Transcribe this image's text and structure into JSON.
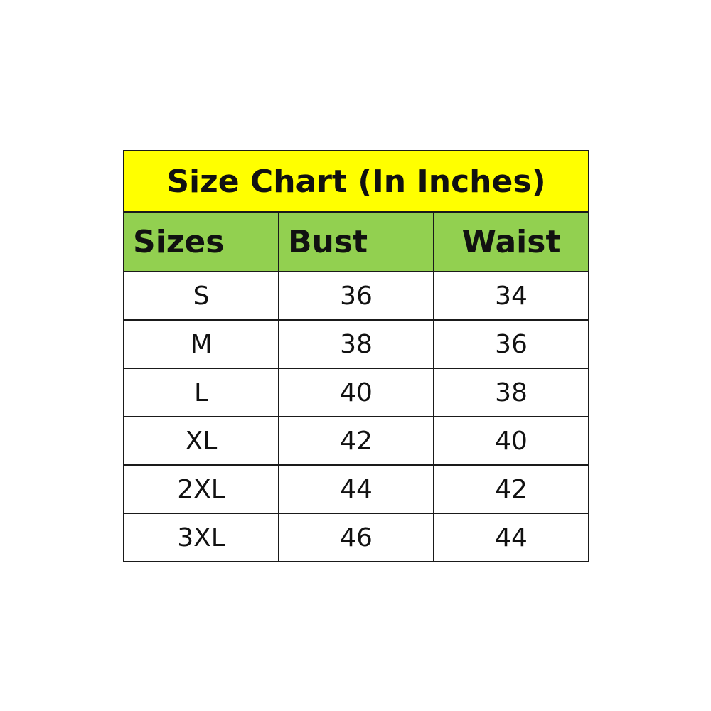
{
  "chart_data": {
    "type": "table",
    "title": "Size Chart (In Inches)",
    "columns": [
      "Sizes",
      "Bust",
      "Waist"
    ],
    "rows": [
      [
        "S",
        "36",
        "34"
      ],
      [
        "M",
        "38",
        "36"
      ],
      [
        "L",
        "40",
        "38"
      ],
      [
        "XL",
        "42",
        "40"
      ],
      [
        "2XL",
        "44",
        "42"
      ],
      [
        "3XL",
        "46",
        "44"
      ]
    ],
    "colors": {
      "title_bg": "#FFFF00",
      "header_bg": "#92D050",
      "body_bg": "#FFFFFF",
      "border": "#1A1A1A"
    }
  }
}
